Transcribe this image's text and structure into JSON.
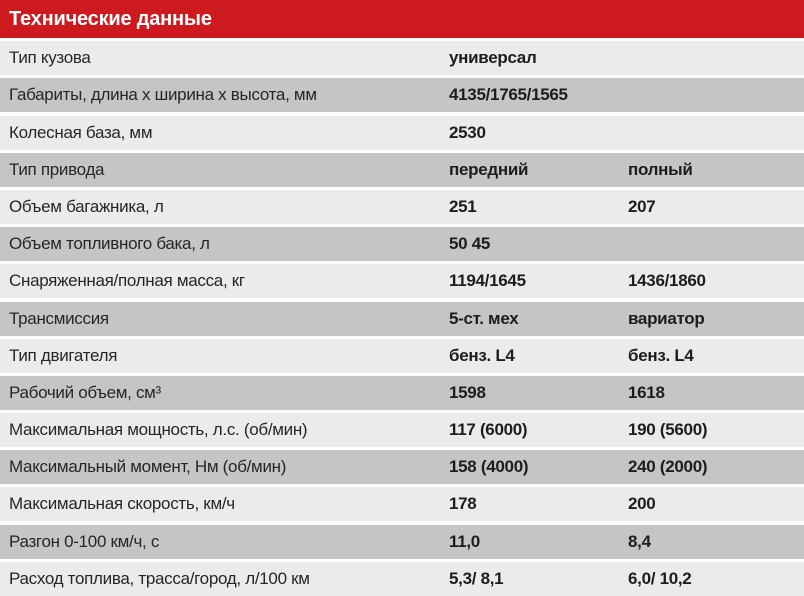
{
  "header": {
    "title": "Технические данные"
  },
  "colors": {
    "header_red": "#cd1a1f",
    "row_light": "#ebebeb",
    "row_dark": "#c5c5c5",
    "title_text": "#ffffff",
    "body_text": "#1d1d1b"
  },
  "table": {
    "rows": [
      {
        "label": "Тип кузова",
        "value1": "универсал",
        "value2": ""
      },
      {
        "label": "Габариты, длина х ширина х высота, мм",
        "value1": "4135/1765/1565",
        "value2": ""
      },
      {
        "label": "Колесная база, мм",
        "value1": "2530",
        "value2": ""
      },
      {
        "label": "Тип привода",
        "value1": "передний",
        "value2": "полный"
      },
      {
        "label": "Объем багажника, л",
        "value1": "251",
        "value2": "207"
      },
      {
        "label": "Объем топливного бака, л",
        "value1": "50 45",
        "value2": ""
      },
      {
        "label": "Снаряженная/полная масса, кг",
        "value1": "1194/1645",
        "value2": "1436/1860"
      },
      {
        "label": "Трансмиссия",
        "value1": "5-ст. мех",
        "value2": "вариатор"
      },
      {
        "label": "Тип двигателя",
        "value1": "бенз. L4",
        "value2": "бенз. L4"
      },
      {
        "label": "Рабочий объем, см³",
        "value1": "1598",
        "value2": "1618"
      },
      {
        "label": "Максимальная мощность, л.с. (об/мин)",
        "value1": "117 (6000)",
        "value2": "190 (5600)"
      },
      {
        "label": "Максимальный момент, Нм (об/мин)",
        "value1": "158 (4000)",
        "value2": "240 (2000)"
      },
      {
        "label": "Максимальная скорость, км/ч",
        "value1": "178",
        "value2": "200"
      },
      {
        "label": "Разгон 0-100 км/ч, с",
        "value1": "11,0",
        "value2": "8,4"
      },
      {
        "label": "Расход топлива, трасса/город, л/100 км",
        "value1": "5,3/ 8,1",
        "value2": "6,0/ 10,2"
      }
    ]
  }
}
